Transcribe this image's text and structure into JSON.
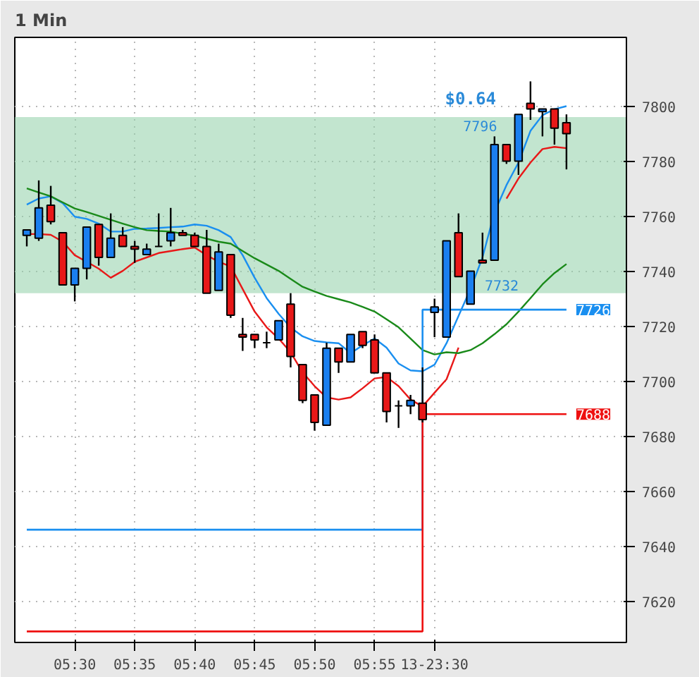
{
  "chart_data": {
    "type": "candlestick",
    "title": "1 Min",
    "categories": [
      null,
      null,
      null,
      null,
      "05:30",
      null,
      null,
      null,
      null,
      "05:35",
      null,
      null,
      null,
      null,
      "05:40",
      null,
      null,
      null,
      null,
      "05:45",
      null,
      null,
      null,
      null,
      "05:50",
      null,
      null,
      null,
      null,
      "05:55",
      null,
      null,
      null,
      null,
      "13-23:30",
      null,
      null,
      null,
      null,
      null,
      null,
      null,
      null,
      null,
      null,
      null
    ],
    "ohlc": [
      [
        7753,
        7755,
        7749,
        7755
      ],
      [
        7752,
        7773,
        7751,
        7763
      ],
      [
        7764,
        7771,
        7757,
        7758
      ],
      [
        7754,
        7754,
        7735,
        7735
      ],
      [
        7735,
        7741,
        7729,
        7741
      ],
      [
        7741,
        7756,
        7737,
        7756
      ],
      [
        7757,
        7757,
        7742,
        7745
      ],
      [
        7745,
        7761,
        7745,
        7752
      ],
      [
        7753,
        7756,
        7749,
        7749
      ],
      [
        7749,
        7751,
        7743,
        7748
      ],
      [
        7746,
        7750,
        7746,
        7748
      ],
      [
        7749,
        7761,
        7749,
        7749
      ],
      [
        7751,
        7763,
        7749,
        7754
      ],
      [
        7754,
        7755,
        7753,
        7753
      ],
      [
        7753,
        7754,
        7749,
        7749
      ],
      [
        7749,
        7755,
        7732,
        7732
      ],
      [
        7733,
        7750,
        7733,
        7747
      ],
      [
        7746,
        7746,
        7723,
        7724
      ],
      [
        7717,
        7723,
        7711,
        7716
      ],
      [
        7717,
        7717,
        7712,
        7715
      ],
      [
        7714,
        7718,
        7712,
        7714
      ],
      [
        7715,
        7722,
        7715,
        7722
      ],
      [
        7728,
        7732,
        7705,
        7709
      ],
      [
        7706,
        7706,
        7692,
        7693
      ],
      [
        7695,
        7695,
        7682,
        7685
      ],
      [
        7684,
        7714,
        7684,
        7712
      ],
      [
        7712,
        7712,
        7703,
        7707
      ],
      [
        7707,
        7717,
        7707,
        7717
      ],
      [
        7718,
        7718,
        7712,
        7713
      ],
      [
        7715,
        7717,
        7703,
        7703
      ],
      [
        7703,
        7703,
        7685,
        7689
      ],
      [
        7691,
        7693,
        7683,
        7691
      ],
      [
        7691,
        7695,
        7688,
        7693
      ],
      [
        7692,
        7705,
        7685,
        7686
      ],
      [
        7725,
        7730,
        7716,
        7727
      ],
      [
        7716,
        7751,
        7716,
        7751
      ],
      [
        7754,
        7761,
        7738,
        7738
      ],
      [
        7728,
        7740,
        7728,
        7740
      ],
      [
        7744,
        7754,
        7743,
        7743
      ],
      [
        7744,
        7789,
        7744,
        7786
      ],
      [
        7786,
        7786,
        7779,
        7780
      ],
      [
        7780,
        7797,
        7775,
        7797
      ],
      [
        7801,
        7809,
        7795,
        7799
      ],
      [
        7798,
        7799,
        7789,
        7799
      ],
      [
        7799,
        7799,
        7786,
        7792
      ],
      [
        7794,
        7797,
        7777,
        7790
      ]
    ],
    "colors": [
      "#1a7ff0",
      "#1a7ff0",
      "#e81818",
      "#e81818",
      "#1a7ff0",
      "#1a7ff0",
      "#e81818",
      "#1a7ff0",
      "#e81818",
      "#e81818",
      "#1a7ff0",
      "#000000",
      "#1a7ff0",
      "#e81818",
      "#e81818",
      "#e81818",
      "#1a7ff0",
      "#e81818",
      "#e81818",
      "#e81818",
      "#000000",
      "#1a7ff0",
      "#e81818",
      "#e81818",
      "#e81818",
      "#1a7ff0",
      "#e81818",
      "#1a7ff0",
      "#e81818",
      "#e81818",
      "#e81818",
      "#000000",
      "#1a7ff0",
      "#e81818",
      "#1a7ff0",
      "#1a7ff0",
      "#e81818",
      "#1a7ff0",
      "#e81818",
      "#1a7ff0",
      "#e81818",
      "#1a7ff0",
      "#e81818",
      "#1a7ff0",
      "#e81818",
      "#e81818"
    ],
    "series": [
      {
        "type": "line",
        "color": "#e81818",
        "values": [
          7753.5,
          7753.5,
          7753.2,
          7750.7,
          7745.8,
          7743.4,
          7740.9,
          7737.6,
          7740.1,
          7743.4,
          7745,
          7746.6,
          7747.3,
          7748,
          7748.6,
          7745.8,
          7743.4,
          7741.7,
          7733.5,
          7725.3,
          7719.6,
          7715.5,
          7710.5,
          7703.2,
          7698.2,
          7694.1,
          7693.3,
          7694.1,
          7697.4,
          7701,
          7701.5,
          7698.2,
          7693.3,
          7690.8,
          7695.8,
          7700.7,
          7712.2,
          null,
          null,
          null,
          7766.4,
          7773.7,
          7779.5,
          7784.4,
          7785.2,
          7784.7
        ]
      },
      {
        "type": "line",
        "color": "#1a8ff0",
        "values": [
          7764.2,
          7766.4,
          7767.2,
          7764.7,
          7759.8,
          7759,
          7757.3,
          7754.4,
          7754.4,
          7755.4,
          7755.5,
          7755.7,
          7756,
          7756.2,
          7757,
          7756.5,
          7754.9,
          7752.4,
          7745.8,
          7737.6,
          7730.2,
          7724.5,
          7719.5,
          7716.3,
          7714.6,
          7714.1,
          7713.8,
          7710.2,
          7713,
          7715.5,
          7712.2,
          7706.4,
          7703.9,
          7703.6,
          7706,
          7713.8,
          7723.7,
          7733.5,
          7745,
          7761.4,
          7771.3,
          7779.5,
          7791,
          7796.7,
          7798.9,
          7800
        ]
      },
      {
        "type": "line",
        "color": "#1a8a1a",
        "values": [
          7770.1,
          7768.6,
          7767.2,
          7765,
          7762.8,
          7761.5,
          7760.1,
          7758.7,
          7757.3,
          7756,
          7754.9,
          7754.6,
          7754.4,
          7753.6,
          7752.9,
          7751.8,
          7750.7,
          7750,
          7747.3,
          7744.7,
          7742.4,
          7740.1,
          7737.2,
          7734.3,
          7732.6,
          7731,
          7729.8,
          7728.6,
          7727,
          7725.3,
          7722.5,
          7719.6,
          7715.5,
          7711.3,
          7709.7,
          7710.5,
          7710.2,
          7711.3,
          7713.8,
          7717.1,
          7720.7,
          7725.3,
          7730.2,
          7735.2,
          7739.3,
          7742.6
        ]
      },
      {
        "type": "step",
        "color": "#1a8ff0",
        "values": [
          7646,
          7646,
          7646,
          7646,
          7646,
          7646,
          7646,
          7646,
          7646,
          7646,
          7646,
          7646,
          7646,
          7646,
          7646,
          7646,
          7646,
          7646,
          7646,
          7646,
          7646,
          7646,
          7646,
          7646,
          7646,
          7646,
          7646,
          7646,
          7646,
          7646,
          7646,
          7646,
          7646,
          7726,
          7726,
          7726,
          7726,
          7726,
          7726,
          7726,
          7726,
          7726,
          7726,
          7726,
          7726,
          7726
        ],
        "value_labels": [
          null,
          null,
          null,
          null,
          null,
          null,
          null,
          null,
          null,
          null,
          null,
          null,
          null,
          null,
          null,
          null,
          null,
          null,
          null,
          null,
          null,
          null,
          null,
          null,
          null,
          null,
          null,
          null,
          null,
          null,
          null,
          null,
          null,
          null,
          null,
          null,
          null,
          null,
          null,
          null,
          null,
          null,
          null,
          null,
          null,
          "7726"
        ]
      },
      {
        "type": "step",
        "color": "#ee1010",
        "values": [
          7609,
          7609,
          7609,
          7609,
          7609,
          7609,
          7609,
          7609,
          7609,
          7609,
          7609,
          7609,
          7609,
          7609,
          7609,
          7609,
          7609,
          7609,
          7609,
          7609,
          7609,
          7609,
          7609,
          7609,
          7609,
          7609,
          7609,
          7609,
          7609,
          7609,
          7609,
          7609,
          7609,
          7688,
          7688,
          7688,
          7688,
          7688,
          7688,
          7688,
          7688,
          7688,
          7688,
          7688,
          7688,
          7688
        ],
        "value_labels": [
          null,
          null,
          null,
          null,
          null,
          null,
          null,
          null,
          null,
          null,
          null,
          null,
          null,
          null,
          null,
          null,
          null,
          null,
          null,
          null,
          null,
          null,
          null,
          null,
          null,
          null,
          null,
          null,
          null,
          null,
          null,
          null,
          null,
          null,
          null,
          null,
          null,
          null,
          null,
          null,
          null,
          null,
          null,
          null,
          null,
          "7688"
        ]
      }
    ],
    "bands": [
      {
        "axis": "y",
        "from": 7732,
        "to": 7796,
        "color": "#8fd0a8",
        "label": "$0.64"
      }
    ],
    "annotations": [
      "7796",
      "7732"
    ],
    "ylim": [
      7605,
      7825
    ],
    "yticks": [
      7620,
      7640,
      7660,
      7680,
      7700,
      7720,
      7740,
      7760,
      7780,
      7800
    ],
    "grid": true
  }
}
